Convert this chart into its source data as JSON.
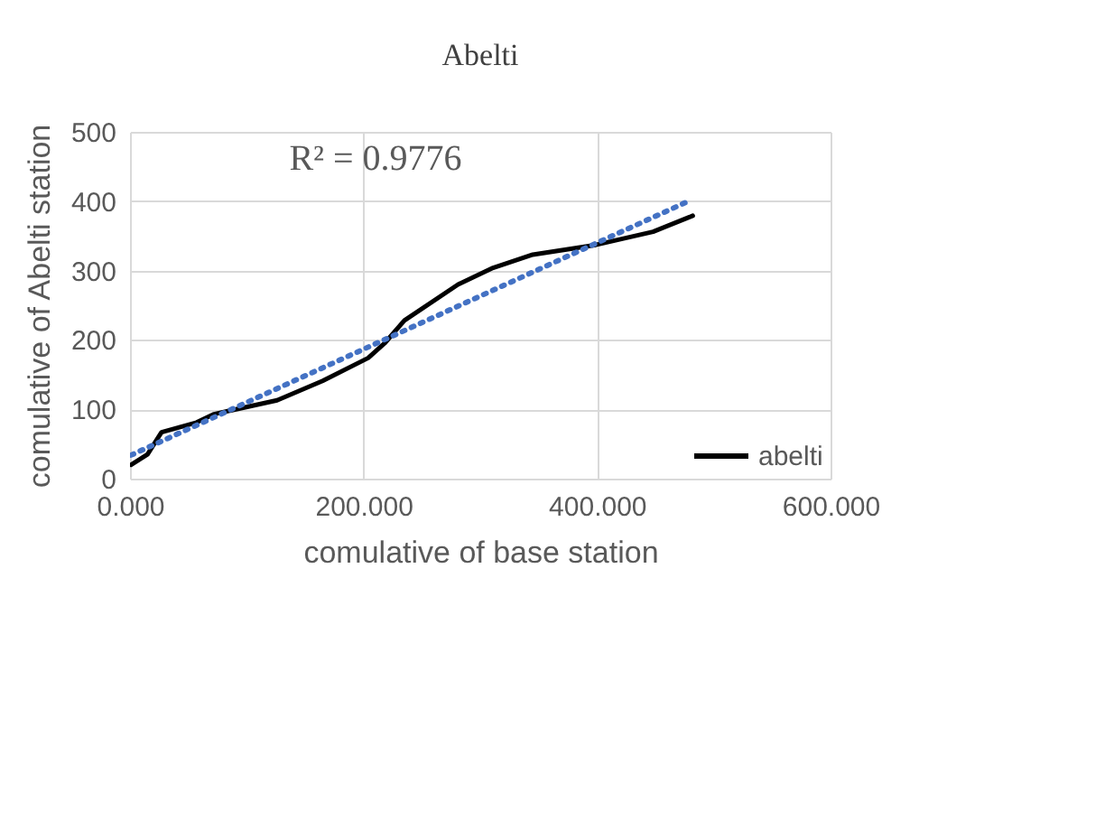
{
  "chart_data": {
    "type": "line",
    "title": "Abelti",
    "xlabel": "comulative of base station",
    "ylabel": "comulative of Abelti station",
    "annotations": [
      "R² = 0.9776"
    ],
    "series": [
      {
        "name": "abelti",
        "color": "#000000",
        "line_style": "solid",
        "x": [
          1,
          15,
          27,
          57,
          72,
          126,
          165,
          204,
          218,
          235,
          281,
          311,
          345,
          399,
          448,
          482
        ],
        "values": [
          20,
          35,
          67,
          81,
          93,
          113,
          141,
          174,
          195,
          228,
          280,
          304,
          323,
          337,
          356,
          379
        ]
      },
      {
        "type": "line",
        "color": "#4472c4",
        "line_style": "dotted",
        "x": [
          1,
          477
        ],
        "values": [
          34,
          399
        ]
      }
    ],
    "xlim": [
      0,
      600
    ],
    "xticks": [
      {
        "value": 0,
        "label": "0.000"
      },
      {
        "value": 200,
        "label": "200.000"
      },
      {
        "value": 400,
        "label": "400.000"
      },
      {
        "value": 600,
        "label": "600.000"
      }
    ],
    "ylim": [
      0,
      500
    ],
    "yticks": [
      0,
      100,
      200,
      300,
      400,
      500
    ],
    "grid": true,
    "legend": "bottom right",
    "marker": "none"
  }
}
